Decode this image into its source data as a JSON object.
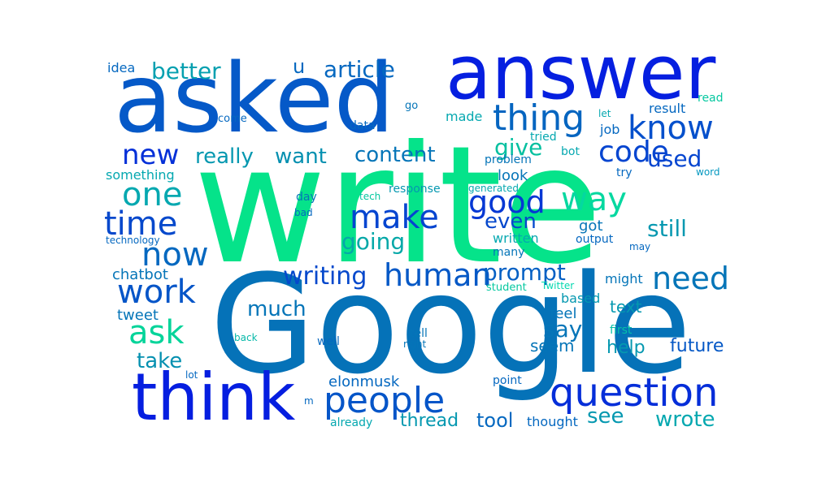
{
  "cloud": {
    "words": [
      {
        "text": "write",
        "color": "#05e38a"
      },
      {
        "text": "Google",
        "color": "#0572b8"
      },
      {
        "text": "asked",
        "color": "#0559c8"
      },
      {
        "text": "answer",
        "color": "#051fe0"
      },
      {
        "text": "think",
        "color": "#051ee0"
      },
      {
        "text": "question",
        "color": "#052ed9"
      },
      {
        "text": "people",
        "color": "#0555c8"
      },
      {
        "text": "thing",
        "color": "#0565c0"
      },
      {
        "text": "know",
        "color": "#0550cc"
      },
      {
        "text": "code",
        "color": "#0545d0"
      },
      {
        "text": "new",
        "color": "#0530d8"
      },
      {
        "text": "one",
        "color": "#05a8b0"
      },
      {
        "text": "time",
        "color": "#0548cc"
      },
      {
        "text": "now",
        "color": "#0568c0"
      },
      {
        "text": "work",
        "color": "#0555c8"
      },
      {
        "text": "ask",
        "color": "#05d49a"
      },
      {
        "text": "make",
        "color": "#0545d0"
      },
      {
        "text": "way",
        "color": "#05d8a0"
      },
      {
        "text": "good",
        "color": "#0538d4"
      },
      {
        "text": "human",
        "color": "#0558c6"
      },
      {
        "text": "writing",
        "color": "#0548cc"
      },
      {
        "text": "need",
        "color": "#0575b8"
      },
      {
        "text": "prompt",
        "color": "#0560c4"
      },
      {
        "text": "better",
        "color": "#05a0b0"
      },
      {
        "text": "article",
        "color": "#0568c0"
      },
      {
        "text": "u",
        "color": "#0568c0"
      },
      {
        "text": "give",
        "color": "#05c0a0"
      },
      {
        "text": "even",
        "color": "#0548cc"
      },
      {
        "text": "content",
        "color": "#0575b8"
      },
      {
        "text": "really",
        "color": "#0598b0"
      },
      {
        "text": "want",
        "color": "#0590b0"
      },
      {
        "text": "going",
        "color": "#05a8a8"
      },
      {
        "text": "used",
        "color": "#0545d0"
      },
      {
        "text": "still",
        "color": "#0598b0"
      },
      {
        "text": "much",
        "color": "#0575b8"
      },
      {
        "text": "say",
        "color": "#0575b8"
      },
      {
        "text": "take",
        "color": "#0590b0"
      },
      {
        "text": "see",
        "color": "#0598b0"
      },
      {
        "text": "wrote",
        "color": "#05a8b0"
      },
      {
        "text": "tool",
        "color": "#0568c0"
      },
      {
        "text": "thread",
        "color": "#0598b0"
      },
      {
        "text": "future",
        "color": "#0558c6"
      },
      {
        "text": "help",
        "color": "#0598b0"
      },
      {
        "text": "seem",
        "color": "#0575b8"
      },
      {
        "text": "text",
        "color": "#0598b0"
      },
      {
        "text": "feel",
        "color": "#0575b8"
      },
      {
        "text": "based",
        "color": "#0598b0"
      },
      {
        "text": "might",
        "color": "#0575b8"
      },
      {
        "text": "elonmusk",
        "color": "#0568c0"
      },
      {
        "text": "tweet",
        "color": "#0575b8"
      },
      {
        "text": "chatbot",
        "color": "#0575b8"
      },
      {
        "text": "something",
        "color": "#05a8b0"
      },
      {
        "text": "look",
        "color": "#0575b8"
      },
      {
        "text": "got",
        "color": "#0575b8"
      },
      {
        "text": "written",
        "color": "#05a8b0"
      },
      {
        "text": "idea",
        "color": "#0568c0"
      },
      {
        "text": "result",
        "color": "#0568c0"
      },
      {
        "text": "job",
        "color": "#0568c0"
      },
      {
        "text": "made",
        "color": "#05a8b0"
      },
      {
        "text": "tried",
        "color": "#05a8b0"
      },
      {
        "text": "bot",
        "color": "#05a8b0"
      },
      {
        "text": "problem",
        "color": "#0575b8"
      },
      {
        "text": "try",
        "color": "#0568c0"
      },
      {
        "text": "word",
        "color": "#0598c0"
      },
      {
        "text": "read",
        "color": "#05c8a0"
      },
      {
        "text": "let",
        "color": "#05a8b0"
      },
      {
        "text": "go",
        "color": "#0575b8"
      },
      {
        "text": "come",
        "color": "#0568c0"
      },
      {
        "text": "data",
        "color": "#0568c0"
      },
      {
        "text": "tech",
        "color": "#05c8a0"
      },
      {
        "text": "response",
        "color": "#0598b0"
      },
      {
        "text": "generated",
        "color": "#05a8b0"
      },
      {
        "text": "day",
        "color": "#0575b8"
      },
      {
        "text": "bad",
        "color": "#0568c0"
      },
      {
        "text": "technology",
        "color": "#0568c0"
      },
      {
        "text": "output",
        "color": "#0568c0"
      },
      {
        "text": "may",
        "color": "#0568c0"
      },
      {
        "text": "many",
        "color": "#0575b8"
      },
      {
        "text": "student",
        "color": "#05c8a0"
      },
      {
        "text": "Twitter",
        "color": "#05d8b0"
      },
      {
        "text": "back",
        "color": "#05b8a8"
      },
      {
        "text": "well",
        "color": "#0568c0"
      },
      {
        "text": "tell",
        "color": "#0575b8"
      },
      {
        "text": "right",
        "color": "#0575b8"
      },
      {
        "text": "first",
        "color": "#05c0a8"
      },
      {
        "text": "lot",
        "color": "#0568c0"
      },
      {
        "text": "point",
        "color": "#0568c0"
      },
      {
        "text": "m",
        "color": "#0568c0"
      },
      {
        "text": "already",
        "color": "#05a8b0"
      },
      {
        "text": "thought",
        "color": "#0568c0"
      }
    ]
  }
}
